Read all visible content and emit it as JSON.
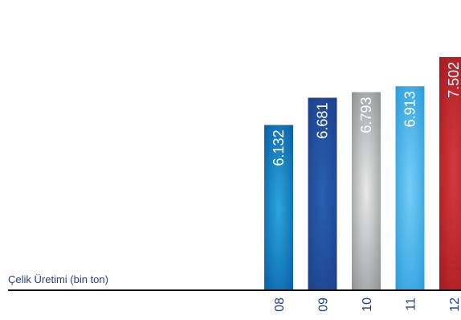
{
  "chart_data": {
    "type": "bar",
    "categories": [
      "08",
      "09",
      "10",
      "11",
      "12"
    ],
    "values": [
      6.132,
      6.681,
      6.793,
      6.913,
      7.502
    ],
    "value_labels": [
      "6.132",
      "6.681",
      "6.793",
      "6.913",
      "7.502"
    ],
    "title": "Çelik Üretimi (bin ton)",
    "xlabel": "",
    "ylabel": "",
    "grid": false,
    "legend": "none",
    "bar_gradients": [
      {
        "edge": "#0a5fa6",
        "center": "#2aa6de"
      },
      {
        "edge": "#1d3f8a",
        "center": "#2860b2"
      },
      {
        "edge": "#8e9093",
        "center": "#e9e9e9"
      },
      {
        "edge": "#2a9ddc",
        "center": "#76cdf5"
      },
      {
        "edge": "#a51a1f",
        "center": "#d43a3f"
      }
    ]
  },
  "colors": {
    "axis": "#111111",
    "text": "#1d3f8a",
    "bar_label": "#ffffff"
  }
}
